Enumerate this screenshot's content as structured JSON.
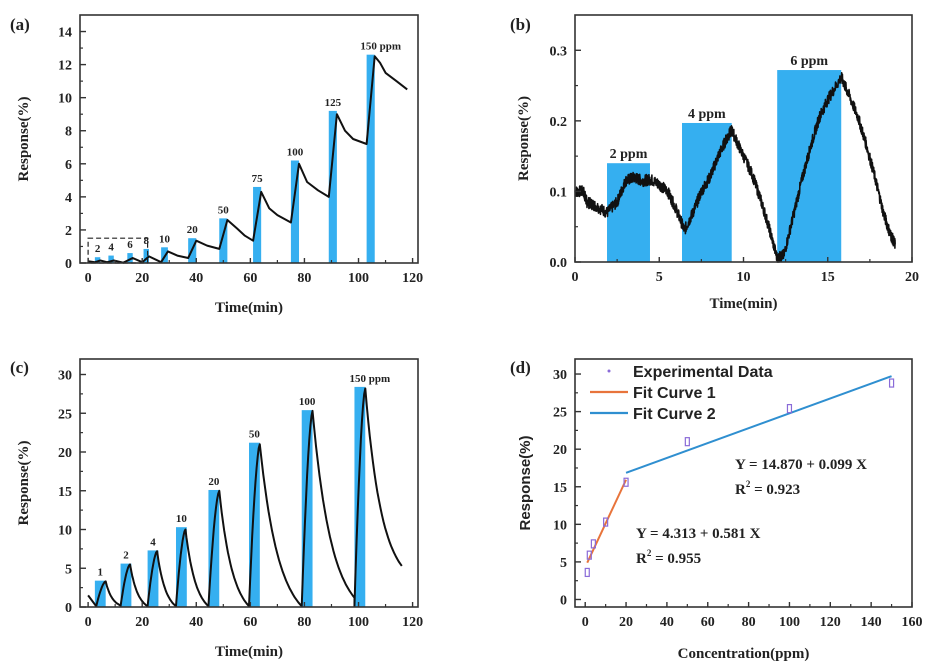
{
  "bar_color": "#35aff0",
  "line_color": "#111111",
  "chart_data": [
    {
      "panel": "(a)",
      "type": "line",
      "title": "",
      "xlabel": "Time(min)",
      "ylabel": "Response(%)",
      "xlim": [
        -3,
        122
      ],
      "ylim": [
        0,
        15
      ],
      "xticks": [
        0,
        20,
        40,
        60,
        80,
        100,
        120
      ],
      "yticks": [
        0,
        2,
        4,
        6,
        8,
        10,
        12,
        14
      ],
      "pulses": [
        {
          "label": "2",
          "x0": 2.5,
          "x1": 4.5,
          "height": 0.35
        },
        {
          "label": "4",
          "x0": 7.5,
          "x1": 9.5,
          "height": 0.45
        },
        {
          "label": "6",
          "x0": 14.5,
          "x1": 16.5,
          "height": 0.6
        },
        {
          "label": "8",
          "x0": 20.5,
          "x1": 22.5,
          "height": 0.85
        },
        {
          "label": "10",
          "x0": 27,
          "x1": 29.5,
          "height": 0.95
        },
        {
          "label": "20",
          "x0": 37,
          "x1": 40,
          "height": 1.5
        },
        {
          "label": "50",
          "x0": 48.5,
          "x1": 51.5,
          "height": 2.7
        },
        {
          "label": "75",
          "x0": 61,
          "x1": 64,
          "height": 4.6
        },
        {
          "label": "100",
          "x0": 75,
          "x1": 78,
          "height": 6.2
        },
        {
          "label": "125",
          "x0": 89,
          "x1": 92,
          "height": 9.2
        },
        {
          "label": "150 ppm",
          "x0": 103,
          "x1": 106,
          "height": 12.6
        }
      ],
      "curve": [
        [
          0,
          0.1
        ],
        [
          2.5,
          0.05
        ],
        [
          4.5,
          0.15
        ],
        [
          7,
          0.05
        ],
        [
          9.5,
          0.15
        ],
        [
          13,
          0.02
        ],
        [
          16.5,
          0.3
        ],
        [
          20,
          0.05
        ],
        [
          22.5,
          0.4
        ],
        [
          27,
          0.05
        ],
        [
          29.5,
          0.7
        ],
        [
          33,
          0.45
        ],
        [
          37,
          0.3
        ],
        [
          40,
          1.35
        ],
        [
          44,
          1.05
        ],
        [
          48.5,
          0.85
        ],
        [
          51.5,
          2.6
        ],
        [
          55,
          2.1
        ],
        [
          58,
          1.65
        ],
        [
          61,
          1.35
        ],
        [
          64,
          4.3
        ],
        [
          67,
          3.3
        ],
        [
          70,
          2.9
        ],
        [
          75,
          2.45
        ],
        [
          78,
          6.0
        ],
        [
          81,
          4.9
        ],
        [
          85,
          4.4
        ],
        [
          89,
          4.0
        ],
        [
          92,
          9.0
        ],
        [
          95,
          8.0
        ],
        [
          98,
          7.5
        ],
        [
          103,
          7.2
        ],
        [
          106,
          12.5
        ],
        [
          108,
          12.1
        ],
        [
          110,
          11.5
        ],
        [
          114,
          11.0
        ],
        [
          118,
          10.5
        ]
      ],
      "annotation": "dashed box highlighting 2-8 ppm pulses",
      "dashed_box": {
        "x0": 0,
        "x1": 22,
        "y0": 0,
        "y1": 1.5
      },
      "grid": false
    },
    {
      "panel": "(b)",
      "type": "line",
      "title": "",
      "xlabel": "Time(min)",
      "ylabel": "Response(%)",
      "xlim": [
        0,
        20
      ],
      "ylim": [
        0,
        0.35
      ],
      "xticks": [
        0,
        5,
        10,
        15,
        20
      ],
      "yticks": [
        0.0,
        0.1,
        0.2,
        0.3
      ],
      "ytick_labels": [
        "0.0",
        "0.1",
        "0.2",
        "0.3"
      ],
      "pulses": [
        {
          "label": "2 ppm",
          "x0": 1.9,
          "x1": 4.45,
          "height": 0.14
        },
        {
          "label": "4 ppm",
          "x0": 6.35,
          "x1": 9.3,
          "height": 0.197
        },
        {
          "label": "6 ppm",
          "x0": 12.0,
          "x1": 15.8,
          "height": 0.272
        }
      ],
      "curve": [
        [
          0,
          0.1
        ],
        [
          0.5,
          0.1
        ],
        [
          0.7,
          0.085
        ],
        [
          1.2,
          0.08
        ],
        [
          1.9,
          0.07
        ],
        [
          2.5,
          0.085
        ],
        [
          3.0,
          0.115
        ],
        [
          3.5,
          0.12
        ],
        [
          4.0,
          0.115
        ],
        [
          4.5,
          0.117
        ],
        [
          5.0,
          0.11
        ],
        [
          5.5,
          0.1
        ],
        [
          6.0,
          0.075
        ],
        [
          6.5,
          0.045
        ],
        [
          7.0,
          0.07
        ],
        [
          7.5,
          0.1
        ],
        [
          8.0,
          0.12
        ],
        [
          8.5,
          0.15
        ],
        [
          9.0,
          0.175
        ],
        [
          9.3,
          0.187
        ],
        [
          9.8,
          0.16
        ],
        [
          10.5,
          0.125
        ],
        [
          11.0,
          0.09
        ],
        [
          11.5,
          0.05
        ],
        [
          12.0,
          0.005
        ],
        [
          12.4,
          0.01
        ],
        [
          13.0,
          0.07
        ],
        [
          13.5,
          0.12
        ],
        [
          14.0,
          0.165
        ],
        [
          14.5,
          0.205
        ],
        [
          15.0,
          0.23
        ],
        [
          15.8,
          0.262
        ],
        [
          16.2,
          0.24
        ],
        [
          16.8,
          0.205
        ],
        [
          17.3,
          0.165
        ],
        [
          17.8,
          0.12
        ],
        [
          18.3,
          0.07
        ],
        [
          18.7,
          0.04
        ],
        [
          19.0,
          0.025
        ]
      ],
      "noisy": true,
      "grid": false
    },
    {
      "panel": "(c)",
      "type": "line",
      "title": "",
      "xlabel": "Time(min)",
      "ylabel": "Response(%)",
      "xlim": [
        -3,
        122
      ],
      "ylim": [
        0,
        32
      ],
      "xticks": [
        0,
        20,
        40,
        60,
        80,
        100,
        120
      ],
      "yticks": [
        0,
        5,
        10,
        15,
        20,
        25,
        30
      ],
      "pulses": [
        {
          "label": "1",
          "x0": 2.5,
          "x1": 6.5,
          "height": 3.4
        },
        {
          "label": "2",
          "x0": 12,
          "x1": 16,
          "height": 5.6
        },
        {
          "label": "4",
          "x0": 22,
          "x1": 26,
          "height": 7.3
        },
        {
          "label": "10",
          "x0": 32.5,
          "x1": 36.5,
          "height": 10.3
        },
        {
          "label": "20",
          "x0": 44.5,
          "x1": 48.5,
          "height": 15.1
        },
        {
          "label": "50",
          "x0": 59.5,
          "x1": 63.5,
          "height": 21.2
        },
        {
          "label": "100",
          "x0": 79,
          "x1": 83,
          "height": 25.4
        },
        {
          "label": "150 ppm",
          "x0": 98.5,
          "x1": 102.5,
          "height": 28.4
        }
      ],
      "peaks": [
        {
          "t0": 3,
          "tp": 6.5,
          "peak": 3.3,
          "tend": 12,
          "yend": 0.2
        },
        {
          "t0": 12,
          "tp": 15.5,
          "peak": 5.5,
          "tend": 22,
          "yend": 0.1
        },
        {
          "t0": 22,
          "tp": 25.5,
          "peak": 7.2,
          "tend": 32.5,
          "yend": 0.1
        },
        {
          "t0": 32.5,
          "tp": 36,
          "peak": 10.0,
          "tend": 44.5,
          "yend": 0.1
        },
        {
          "t0": 44.5,
          "tp": 48.5,
          "peak": 15.0,
          "tend": 59.5,
          "yend": 0.1
        },
        {
          "t0": 59.5,
          "tp": 63.5,
          "peak": 21.0,
          "tend": 79,
          "yend": 0.1
        },
        {
          "t0": 79,
          "tp": 83,
          "peak": 25.3,
          "tend": 98.5,
          "yend": 1.2
        },
        {
          "t0": 98.5,
          "tp": 102.5,
          "peak": 28.2,
          "tend": 116,
          "yend": 5.3
        }
      ],
      "start_point": [
        0,
        1.5
      ],
      "grid": false
    },
    {
      "panel": "(d)",
      "type": "scatter",
      "title": "",
      "xlabel": "Concentration(ppm)",
      "ylabel": "Response(%)",
      "xlim": [
        -5,
        160
      ],
      "ylim": [
        -1,
        32
      ],
      "xticks": [
        0,
        20,
        40,
        60,
        80,
        100,
        120,
        140,
        160
      ],
      "yticks": [
        0,
        5,
        10,
        15,
        20,
        25,
        30
      ],
      "series": [
        {
          "name": "Experimental Data",
          "type": "scatter",
          "color": "#8a6bd8",
          "x": [
            1,
            2,
            4,
            10,
            20,
            50,
            100,
            150
          ],
          "y": [
            3.6,
            5.9,
            7.4,
            10.3,
            15.6,
            21.0,
            25.4,
            28.8
          ]
        },
        {
          "name": "Fit Curve 1",
          "type": "line",
          "color": "#e8743b",
          "x": [
            1,
            20
          ],
          "intercept": 4.313,
          "slope": 0.581
        },
        {
          "name": "Fit Curve 2",
          "type": "line",
          "color": "#2f8fd0",
          "x": [
            20,
            150
          ],
          "intercept": 14.87,
          "slope": 0.099
        }
      ],
      "annotations": [
        {
          "equation": "Y = 14.870 + 0.099 X",
          "r2_prefix": "R",
          "r2_sup": "2",
          "r2_value": " = 0.923"
        },
        {
          "equation": "Y = 4.313 + 0.581 X",
          "r2_prefix": "R",
          "r2_sup": "2",
          "r2_value": " = 0.955"
        }
      ],
      "legend_position": "top-left",
      "grid": false
    }
  ]
}
